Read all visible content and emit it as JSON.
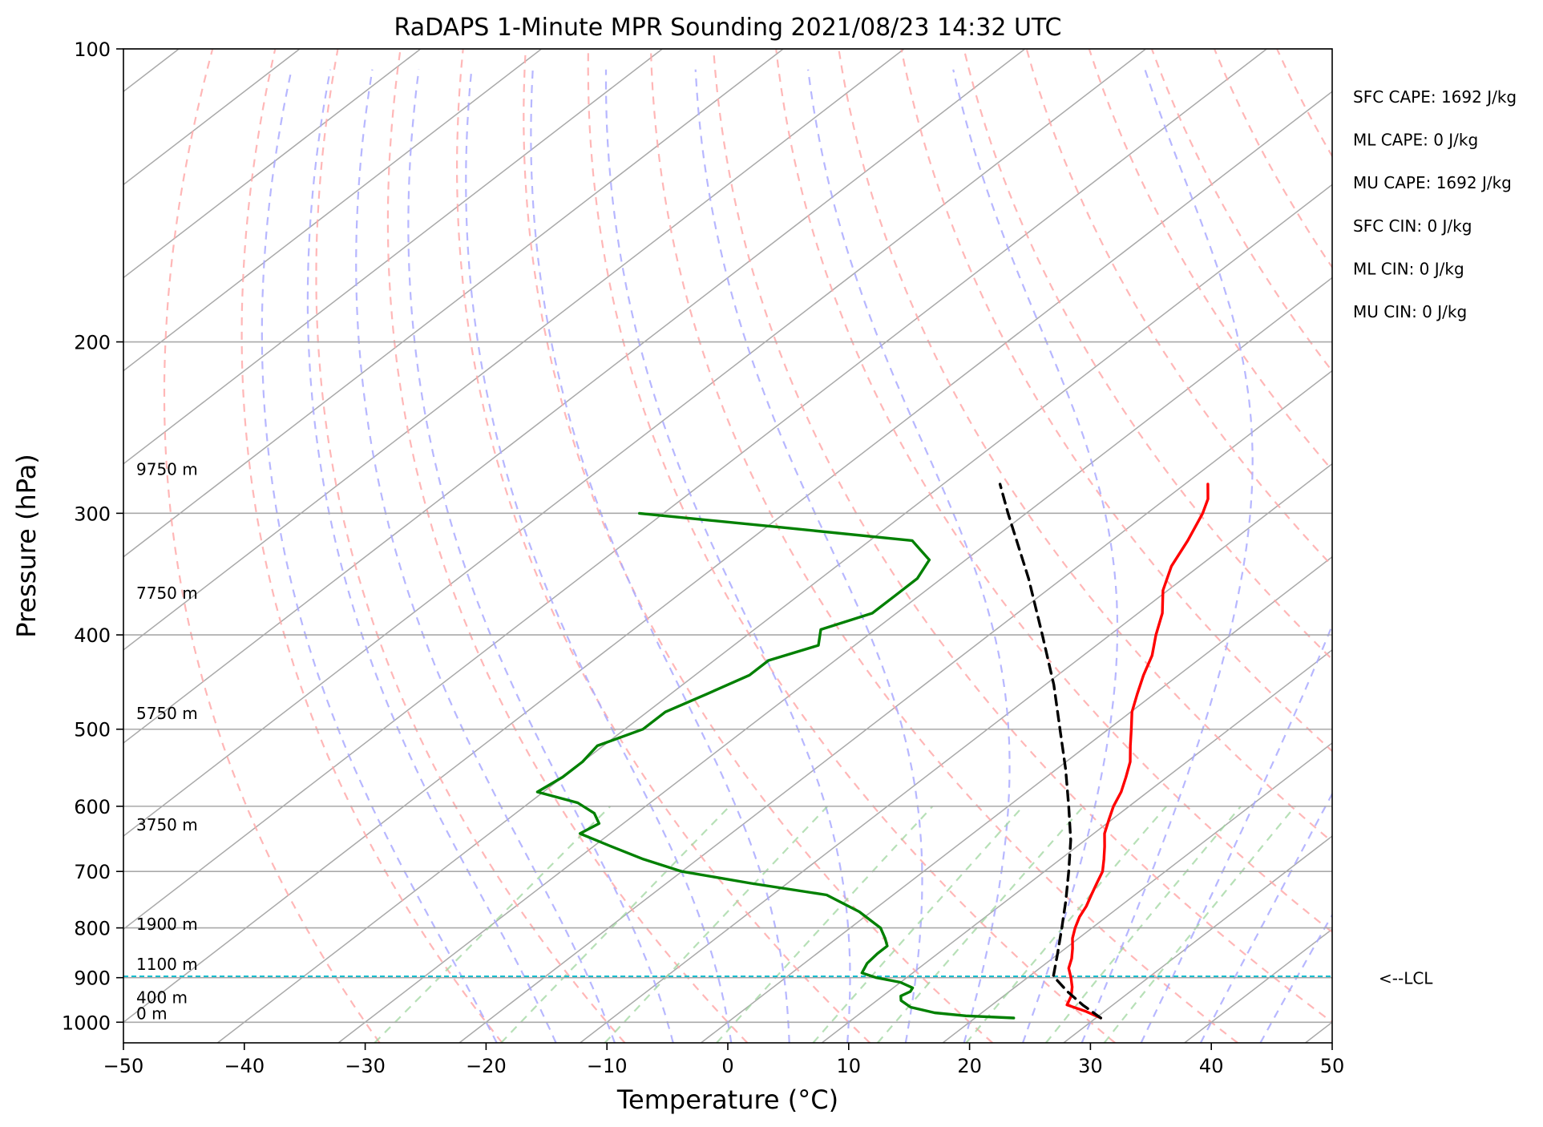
{
  "chart_data": {
    "type": "line",
    "title": "RaDAPS 1-Minute MPR Sounding 2021/08/23 14:32 UTC",
    "xlabel": "Temperature (°C)",
    "ylabel": "Pressure (hPa)",
    "xlim": [
      -50,
      50
    ],
    "ylim": [
      1050,
      100
    ],
    "y_scale": "log",
    "skew_t": true,
    "x_ticks": [
      -50,
      -40,
      -30,
      -20,
      -10,
      0,
      10,
      20,
      30,
      40,
      50
    ],
    "x_tick_labels": [
      "−50",
      "−40",
      "−30",
      "−20",
      "−10",
      "0",
      "10",
      "20",
      "30",
      "40",
      "50"
    ],
    "y_ticks": [
      100,
      200,
      300,
      400,
      500,
      600,
      700,
      800,
      900,
      1000
    ],
    "y_tick_labels": [
      "100",
      "200",
      "300",
      "400",
      "500",
      "600",
      "700",
      "800",
      "900",
      "1000"
    ],
    "grid": true,
    "series": [
      {
        "key": "temperature",
        "color": "#ff0000",
        "style": "solid",
        "points": [
          {
            "p": 990,
            "t": 30.4
          },
          {
            "p": 975,
            "t": 28.5
          },
          {
            "p": 960,
            "t": 26.2
          },
          {
            "p": 940,
            "t": 25.6
          },
          {
            "p": 920,
            "t": 24.7
          },
          {
            "p": 900,
            "t": 23.6
          },
          {
            "p": 880,
            "t": 22.4
          },
          {
            "p": 860,
            "t": 21.6
          },
          {
            "p": 840,
            "t": 20.6
          },
          {
            "p": 820,
            "t": 19.5
          },
          {
            "p": 800,
            "t": 18.6
          },
          {
            "p": 780,
            "t": 17.8
          },
          {
            "p": 760,
            "t": 17.2
          },
          {
            "p": 740,
            "t": 16.4
          },
          {
            "p": 720,
            "t": 15.6
          },
          {
            "p": 700,
            "t": 14.8
          },
          {
            "p": 680,
            "t": 13.6
          },
          {
            "p": 660,
            "t": 12.3
          },
          {
            "p": 640,
            "t": 10.9
          },
          {
            "p": 620,
            "t": 9.8
          },
          {
            "p": 600,
            "t": 8.7
          },
          {
            "p": 580,
            "t": 7.8
          },
          {
            "p": 560,
            "t": 6.6
          },
          {
            "p": 540,
            "t": 5.3
          },
          {
            "p": 520,
            "t": 3.6
          },
          {
            "p": 500,
            "t": 1.9
          },
          {
            "p": 480,
            "t": 0.1
          },
          {
            "p": 460,
            "t": -1.4
          },
          {
            "p": 440,
            "t": -2.9
          },
          {
            "p": 420,
            "t": -4.3
          },
          {
            "p": 400,
            "t": -6.2
          },
          {
            "p": 380,
            "t": -8.0
          },
          {
            "p": 360,
            "t": -10.4
          },
          {
            "p": 340,
            "t": -12.3
          },
          {
            "p": 320,
            "t": -13.7
          },
          {
            "p": 300,
            "t": -15.4
          },
          {
            "p": 290,
            "t": -16.5
          },
          {
            "p": 280,
            "t": -18.1
          }
        ]
      },
      {
        "key": "dewpoint",
        "color": "#008000",
        "style": "solid",
        "points": [
          {
            "p": 990,
            "t": 23.2
          },
          {
            "p": 985,
            "t": 19.0
          },
          {
            "p": 978,
            "t": 16.1
          },
          {
            "p": 965,
            "t": 13.5
          },
          {
            "p": 950,
            "t": 12.0
          },
          {
            "p": 940,
            "t": 11.5
          },
          {
            "p": 930,
            "t": 11.8
          },
          {
            "p": 922,
            "t": 11.6
          },
          {
            "p": 910,
            "t": 10.0
          },
          {
            "p": 900,
            "t": 7.5
          },
          {
            "p": 890,
            "t": 5.8
          },
          {
            "p": 870,
            "t": 5.2
          },
          {
            "p": 850,
            "t": 5.0
          },
          {
            "p": 835,
            "t": 5.0
          },
          {
            "p": 820,
            "t": 4.0
          },
          {
            "p": 800,
            "t": 2.5
          },
          {
            "p": 770,
            "t": -1.0
          },
          {
            "p": 740,
            "t": -5.5
          },
          {
            "p": 720,
            "t": -13.0
          },
          {
            "p": 700,
            "t": -20.0
          },
          {
            "p": 680,
            "t": -24.5
          },
          {
            "p": 660,
            "t": -28.5
          },
          {
            "p": 640,
            "t": -32.5
          },
          {
            "p": 625,
            "t": -32.0
          },
          {
            "p": 610,
            "t": -33.5
          },
          {
            "p": 595,
            "t": -36.0
          },
          {
            "p": 580,
            "t": -40.5
          },
          {
            "p": 560,
            "t": -40.0
          },
          {
            "p": 540,
            "t": -40.0
          },
          {
            "p": 520,
            "t": -40.5
          },
          {
            "p": 500,
            "t": -38.5
          },
          {
            "p": 480,
            "t": -38.5
          },
          {
            "p": 460,
            "t": -37.0
          },
          {
            "p": 440,
            "t": -35.5
          },
          {
            "p": 425,
            "t": -35.5
          },
          {
            "p": 410,
            "t": -33.0
          },
          {
            "p": 395,
            "t": -34.5
          },
          {
            "p": 380,
            "t": -32.0
          },
          {
            "p": 365,
            "t": -32.0
          },
          {
            "p": 350,
            "t": -32.0
          },
          {
            "p": 335,
            "t": -33.0
          },
          {
            "p": 320,
            "t": -36.5
          },
          {
            "p": 310,
            "t": -49.0
          },
          {
            "p": 300,
            "t": -62.0
          }
        ]
      },
      {
        "key": "parcel",
        "color": "#000000",
        "style": "dashed",
        "points": [
          {
            "p": 990,
            "t": 30.4
          },
          {
            "p": 960,
            "t": 27.5
          },
          {
            "p": 930,
            "t": 24.8
          },
          {
            "p": 897,
            "t": 22.0
          },
          {
            "p": 850,
            "t": 19.9
          },
          {
            "p": 800,
            "t": 17.5
          },
          {
            "p": 750,
            "t": 14.9
          },
          {
            "p": 700,
            "t": 12.0
          },
          {
            "p": 650,
            "t": 8.8
          },
          {
            "p": 600,
            "t": 5.0
          },
          {
            "p": 550,
            "t": 0.8
          },
          {
            "p": 500,
            "t": -4.0
          },
          {
            "p": 450,
            "t": -9.3
          },
          {
            "p": 400,
            "t": -15.6
          },
          {
            "p": 350,
            "t": -22.8
          },
          {
            "p": 300,
            "t": -31.5
          },
          {
            "p": 280,
            "t": -35.3
          }
        ]
      }
    ],
    "lcl": {
      "p": 897,
      "label": "<--LCL"
    },
    "height_labels": [
      {
        "p": 1000,
        "text": "0 m"
      },
      {
        "p": 963,
        "text": "400 m"
      },
      {
        "p": 890,
        "text": "1100 m"
      },
      {
        "p": 810,
        "text": "1900 m"
      },
      {
        "p": 640,
        "text": "3750 m"
      },
      {
        "p": 492,
        "text": "5750 m"
      },
      {
        "p": 370,
        "text": "7750 m"
      },
      {
        "p": 276,
        "text": "9750 m"
      }
    ],
    "annotations": [
      "SFC CAPE: 1692 J/kg",
      "ML CAPE: 0 J/kg",
      "MU CAPE: 1692 J/kg",
      "SFC CIN: 0 J/kg",
      "ML CIN: 0 J/kg",
      "MU CIN: 0 J/kg"
    ],
    "background_lines": {
      "isotherm_color": "#a9a9a9",
      "dry_adiabat_color": "#ffaaaa",
      "moist_adiabat_color": "#aaaaff",
      "mixing_ratio_color": "#9fd59f",
      "lcl_color": "#17becf"
    }
  }
}
